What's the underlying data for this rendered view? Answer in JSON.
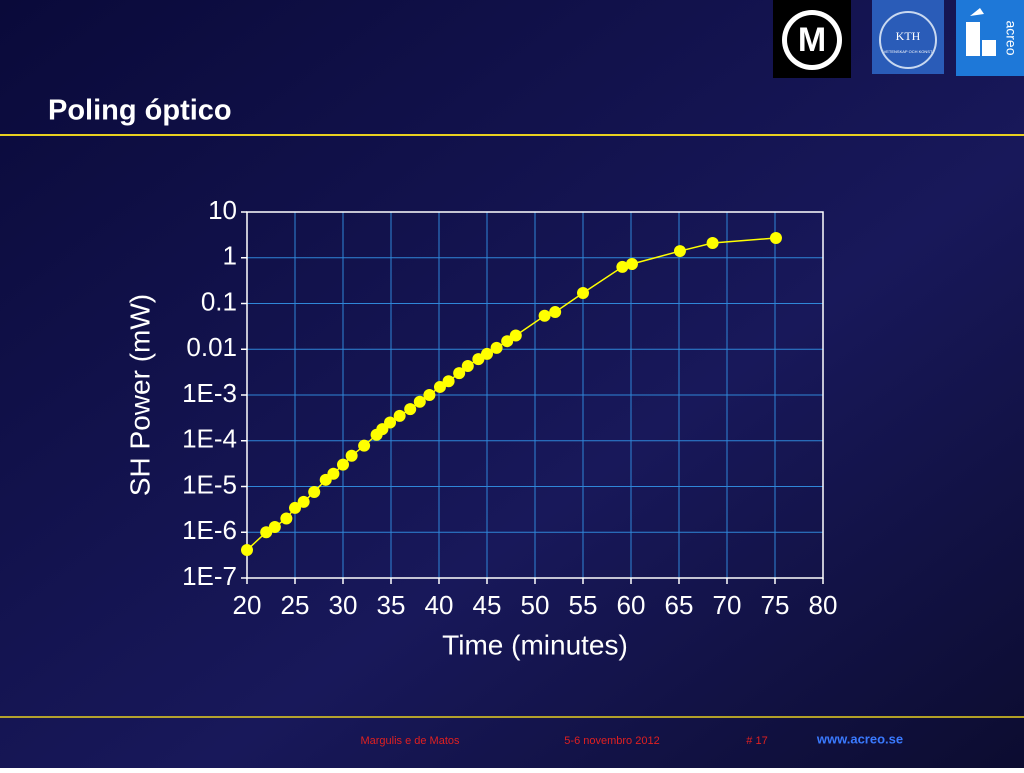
{
  "header": {
    "title": "Poling óptico"
  },
  "logos": {
    "m": "M",
    "kth": "KTH",
    "kth_motto": "VETENSKAP OCH KONST",
    "acreo": "acreo"
  },
  "footer": {
    "author": "Margulis e de Matos",
    "date": "5-6 novembro 2012",
    "page": "# 17",
    "url": "www.acreo.se"
  },
  "chart_data": {
    "type": "line",
    "x_label": "Time (minutes)",
    "y_label": "SH Power (mW)",
    "yscale": "log",
    "grid": true,
    "xlim": [
      20,
      80
    ],
    "xticks": [
      20,
      25,
      30,
      35,
      40,
      45,
      50,
      55,
      60,
      65,
      70,
      75,
      80
    ],
    "ylim": [
      1e-07,
      10
    ],
    "yticks": [
      {
        "value": 1e-07,
        "label": "1E-7"
      },
      {
        "value": 1e-06,
        "label": "1E-6"
      },
      {
        "value": 1e-05,
        "label": "1E-5"
      },
      {
        "value": 0.0001,
        "label": "1E-4"
      },
      {
        "value": 0.001,
        "label": "1E-3"
      },
      0.01,
      0.1,
      1,
      10
    ],
    "series": [
      {
        "name": "SH Power",
        "color": "#ffff00",
        "x": [
          20,
          22,
          22.9,
          24.1,
          25,
          25.9,
          27,
          28.2,
          29,
          30,
          30.9,
          32.2,
          33.5,
          34.1,
          34.9,
          35.9,
          37,
          38,
          39,
          40.1,
          41,
          42.1,
          43,
          44.1,
          45,
          46,
          47.1,
          48,
          51,
          52.1,
          55,
          59.1,
          60.1,
          65.1,
          68.5,
          75.1
        ],
        "values": [
          4.1e-07,
          1e-06,
          1.3e-06,
          2e-06,
          3.4e-06,
          4.6e-06,
          7.6e-06,
          1.4e-05,
          1.9e-05,
          3e-05,
          4.7e-05,
          7.8e-05,
          0.000135,
          0.00018,
          0.00025,
          0.00035,
          0.00049,
          0.00071,
          0.001,
          0.0015,
          0.002,
          0.003,
          0.0043,
          0.0061,
          0.0079,
          0.0107,
          0.015,
          0.02,
          0.054,
          0.065,
          0.17,
          0.63,
          0.73,
          1.4,
          2.1,
          2.7
        ]
      }
    ]
  }
}
